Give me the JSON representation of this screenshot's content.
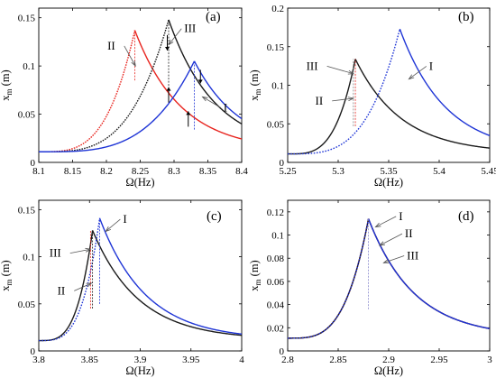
{
  "chart_data": [
    {
      "type": "line",
      "panel": "(a)",
      "xlabel": "Ω(Hz)",
      "ylabel": "x_m (m)",
      "xlim": [
        8.1,
        8.4
      ],
      "ylim": [
        0,
        0.16
      ],
      "xticks": [
        8.1,
        8.15,
        8.2,
        8.25,
        8.3,
        8.35,
        8.4
      ],
      "xtick_labels": [
        "8.1",
        "8.15",
        "8.2",
        "8.25",
        "8.3",
        "8.35",
        "8.4"
      ],
      "yticks": [
        0,
        0.05,
        0.1,
        0.15
      ],
      "ytick_labels": [
        "0",
        "0.05",
        "0.1",
        "0.15"
      ],
      "series": [
        {
          "color": "#e8251f",
          "x0": 8.242,
          "peak": 0.137
        },
        {
          "color": "#1b1b1b",
          "x0": 8.292,
          "peak": 0.148
        },
        {
          "color": "#1f35d6",
          "x0": 8.33,
          "peak": 0.105
        }
      ],
      "annotations": [
        {
          "text": "II",
          "tx": 8.213,
          "ty": 0.117,
          "ax": 8.243,
          "ay": 0.1
        },
        {
          "text": "III",
          "tx": 8.315,
          "ty": 0.135,
          "ax": 8.292,
          "ay": 0.122
        },
        {
          "text": "I",
          "tx": 8.373,
          "ty": 0.053,
          "ax": 8.342,
          "ay": 0.068
        }
      ],
      "arrows": [
        {
          "x": 8.29,
          "y1": 0.132,
          "y2": 0.116
        },
        {
          "x": 8.292,
          "y1": 0.062,
          "y2": 0.078
        },
        {
          "x": 8.321,
          "y1": 0.037,
          "y2": 0.053
        },
        {
          "x": 8.339,
          "y1": 0.096,
          "y2": 0.082
        }
      ],
      "jumps": [
        {
          "x": 8.242,
          "y1": 0.085,
          "y2": 0.137,
          "color": "#e8251f"
        },
        {
          "x": 8.292,
          "y1": 0.063,
          "y2": 0.148,
          "color": "#1b1b1b"
        },
        {
          "x": 8.33,
          "y1": 0.034,
          "y2": 0.105,
          "color": "#1f35d6"
        }
      ]
    },
    {
      "type": "line",
      "panel": "(b)",
      "xlabel": "Ω(Hz)",
      "ylabel": "x_m (m)",
      "xlim": [
        5.25,
        5.45
      ],
      "ylim": [
        0,
        0.2
      ],
      "xticks": [
        5.25,
        5.3,
        5.35,
        5.4,
        5.45
      ],
      "xtick_labels": [
        "5.25",
        "5.3",
        "5.35",
        "5.4",
        "5.45"
      ],
      "yticks": [
        0,
        0.05,
        0.1,
        0.15,
        0.2
      ],
      "ytick_labels": [
        "0",
        "0.05",
        "0.1",
        "0.15",
        "0.2"
      ],
      "series": [
        {
          "color": "#1b1b1b",
          "x0": 5.317,
          "peak": 0.134
        },
        {
          "color": "#1f35d6",
          "x0": 5.361,
          "peak": 0.173
        }
      ],
      "annotations": [
        {
          "text": "III",
          "tx": 5.28,
          "ty": 0.12,
          "ax": 5.315,
          "ay": 0.115
        },
        {
          "text": "II",
          "tx": 5.285,
          "ty": 0.075,
          "ax": 5.315,
          "ay": 0.083
        },
        {
          "text": "I",
          "tx": 5.39,
          "ty": 0.12,
          "ax": 5.37,
          "ay": 0.108
        }
      ],
      "arrows": [],
      "jumps": [
        {
          "x": 5.317,
          "y1": 0.047,
          "y2": 0.134,
          "color": "#e8251f"
        },
        {
          "x": 5.315,
          "y1": 0.047,
          "y2": 0.134,
          "color": "#888888"
        }
      ]
    },
    {
      "type": "line",
      "panel": "(c)",
      "xlabel": "Ω(Hz)",
      "ylabel": "x_m (m)",
      "xlim": [
        3.8,
        4.0
      ],
      "ylim": [
        0,
        0.16
      ],
      "xticks": [
        3.8,
        3.85,
        3.9,
        3.95,
        4.0
      ],
      "xtick_labels": [
        "3.8",
        "3.85",
        "3.9",
        "3.95",
        "4"
      ],
      "yticks": [
        0,
        0.05,
        0.1,
        0.15
      ],
      "ytick_labels": [
        "0",
        "0.05",
        "0.1",
        "0.15"
      ],
      "series": [
        {
          "color": "#1b1b1b",
          "x0": 3.853,
          "peak": 0.128
        },
        {
          "color": "#1f35d6",
          "x0": 3.86,
          "peak": 0.141
        }
      ],
      "annotations": [
        {
          "text": "I",
          "tx": 3.883,
          "ty": 0.136,
          "ax": 3.866,
          "ay": 0.127
        },
        {
          "text": "III",
          "tx": 3.822,
          "ty": 0.1,
          "ax": 3.851,
          "ay": 0.108
        },
        {
          "text": "II",
          "tx": 3.826,
          "ty": 0.06,
          "ax": 3.852,
          "ay": 0.072
        }
      ],
      "arrows": [],
      "jumps": [
        {
          "x": 3.851,
          "y1": 0.045,
          "y2": 0.128,
          "color": "#e8251f"
        },
        {
          "x": 3.853,
          "y1": 0.045,
          "y2": 0.128,
          "color": "#1b1b1b"
        },
        {
          "x": 3.86,
          "y1": 0.05,
          "y2": 0.141,
          "color": "#1f35d6"
        }
      ]
    },
    {
      "type": "line",
      "panel": "(d)",
      "xlabel": "Ω(Hz)",
      "ylabel": "x_m (m)",
      "xlim": [
        2.8,
        3.0
      ],
      "ylim": [
        0,
        0.13
      ],
      "xticks": [
        2.8,
        2.85,
        2.9,
        2.95,
        3.0
      ],
      "xtick_labels": [
        "2.8",
        "2.85",
        "2.9",
        "2.95",
        "3"
      ],
      "yticks": [
        0,
        0.02,
        0.04,
        0.06,
        0.08,
        0.1,
        0.12
      ],
      "ytick_labels": [
        "0",
        "0.02",
        "0.04",
        "0.06",
        "0.08",
        "0.1",
        "0.12"
      ],
      "series": [
        {
          "color": "#e8251f",
          "x0": 2.88,
          "peak": 0.114
        },
        {
          "color": "#1b1b1b",
          "x0": 2.88,
          "peak": 0.114
        },
        {
          "color": "#1f35d6",
          "x0": 2.88,
          "peak": 0.114
        }
      ],
      "annotations": [
        {
          "text": "I",
          "tx": 2.91,
          "ty": 0.113,
          "ax": 2.887,
          "ay": 0.107
        },
        {
          "text": "II",
          "tx": 2.916,
          "ty": 0.098,
          "ax": 2.891,
          "ay": 0.091
        },
        {
          "text": "III",
          "tx": 2.918,
          "ty": 0.079,
          "ax": 2.895,
          "ay": 0.076
        }
      ],
      "arrows": [],
      "jumps": [
        {
          "x": 2.88,
          "y1": 0.036,
          "y2": 0.114,
          "color": "#8888cc"
        }
      ]
    }
  ]
}
